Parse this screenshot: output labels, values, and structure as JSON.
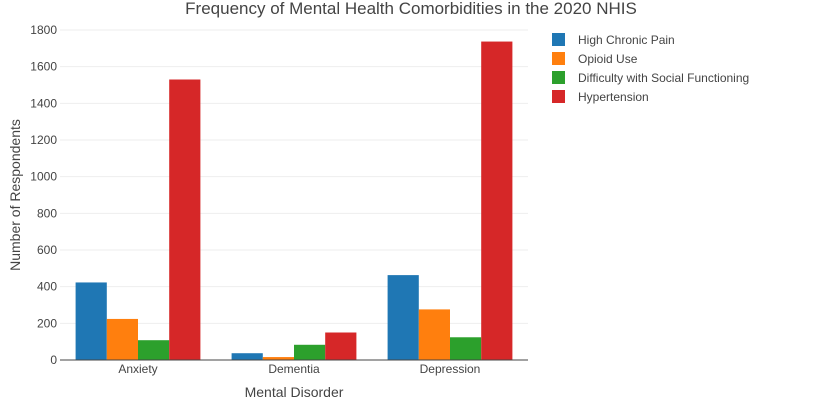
{
  "chart_data": {
    "type": "bar",
    "title": "Frequency of Mental Health Comorbidities in the 2020 NHIS",
    "xlabel": "Mental Disorder",
    "ylabel": "Number of Respondents",
    "categories": [
      "Anxiety",
      "Dementia",
      "Depression"
    ],
    "ylim": [
      0,
      1800
    ],
    "yticks": [
      0,
      200,
      400,
      600,
      800,
      1000,
      1200,
      1400,
      1600,
      1800
    ],
    "grid": true,
    "legend_position": "top-right",
    "series": [
      {
        "name": "High Chronic Pain",
        "color": "#1f77b4",
        "values": [
          423,
          37,
          463
        ]
      },
      {
        "name": "Opioid Use",
        "color": "#ff7f0e",
        "values": [
          224,
          16,
          276
        ]
      },
      {
        "name": "Difficulty with Social Functioning",
        "color": "#2ca02c",
        "values": [
          108,
          83,
          124
        ]
      },
      {
        "name": "Hypertension",
        "color": "#d62728",
        "values": [
          1530,
          150,
          1737
        ]
      }
    ]
  }
}
